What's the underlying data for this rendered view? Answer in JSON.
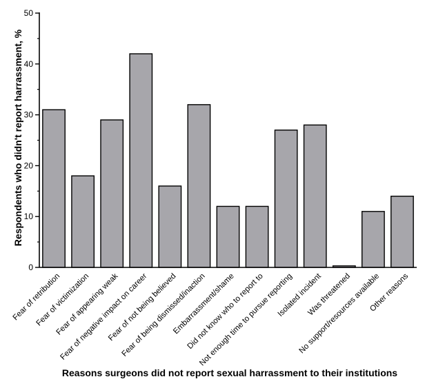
{
  "chart_data": {
    "type": "bar",
    "categories": [
      "Fear of retribution",
      "Fear of victimization",
      "Fear of appearing weak",
      "Fear of negative impact on career",
      "Fear of not being believed",
      "Fear of being dismissed/inaction",
      "Embarrassment/shame",
      "Did not know who to report to",
      "Not enough time to pursue reporting",
      "Isolated incident",
      "Was threatened",
      "No support/resources available",
      "Other reasons"
    ],
    "values": [
      31,
      18,
      29,
      42,
      16,
      32,
      12,
      12,
      27,
      28,
      0.3,
      11,
      14
    ],
    "xlabel": "Reasons surgeons did not report sexual harrassment to their institutions",
    "ylabel": "Respondents who didn't report harrassment, %",
    "ylim": [
      0,
      50
    ],
    "yticks": [
      0,
      10,
      20,
      30,
      40,
      50
    ],
    "colors": {
      "bar_fill": "#a7a6ab",
      "bar_stroke": "#000000"
    }
  }
}
